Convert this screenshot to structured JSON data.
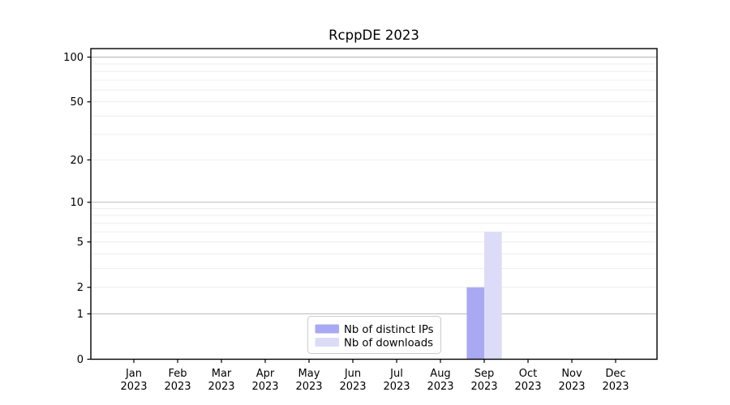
{
  "title": "RcppDE 2023",
  "colors": {
    "bar_distinct_ips": "#a9a9f3",
    "bar_downloads": "#dcdcf8",
    "grid_major": "#b3b3b3",
    "grid_minor": "#ebebeb",
    "axis": "#000000",
    "legend_border": "#cccccc",
    "legend_fill": "#ffffff",
    "text": "#000000"
  },
  "chart_data": {
    "type": "bar",
    "title": "RcppDE 2023",
    "categories": [
      "Jan",
      "Feb",
      "Mar",
      "Apr",
      "May",
      "Jun",
      "Jul",
      "Aug",
      "Sep",
      "Oct",
      "Nov",
      "Dec"
    ],
    "category_year": "2023",
    "series": [
      {
        "name": "Nb of distinct IPs",
        "color": "#a9a9f3",
        "values": [
          0,
          0,
          0,
          0,
          0,
          0,
          0,
          0,
          2,
          0,
          0,
          0
        ]
      },
      {
        "name": "Nb of downloads",
        "color": "#dcdcf8",
        "values": [
          0,
          0,
          0,
          0,
          0,
          0,
          0,
          0,
          6,
          0,
          0,
          0
        ]
      }
    ],
    "xlabel": "",
    "ylabel": "",
    "yscale": "log1p",
    "ylim": [
      0,
      114
    ],
    "yticks": [
      0,
      1,
      2,
      5,
      10,
      20,
      50,
      100
    ],
    "grid": "on",
    "grid_major_values": [
      1,
      10,
      100
    ],
    "grid_minor_values": [
      2,
      3,
      4,
      5,
      6,
      7,
      8,
      9,
      20,
      30,
      40,
      50,
      60,
      70,
      80,
      90
    ],
    "legend_position": "inside-bottom-center",
    "legend_entries": [
      "Nb of distinct IPs",
      "Nb of downloads"
    ]
  }
}
